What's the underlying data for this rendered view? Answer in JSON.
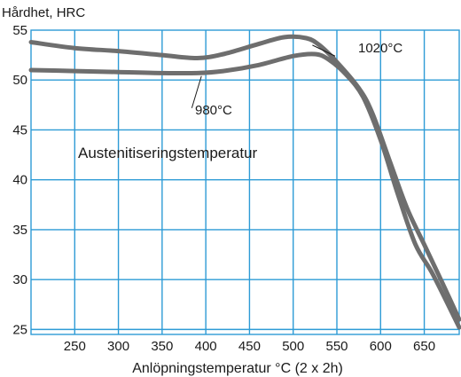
{
  "chart_data": {
    "type": "line",
    "ylabel": "Hårdhet, HRC",
    "xlabel": "Anlöpningstemperatur °C (2 x 2h)",
    "annotation": "Austenitiseringstemperatur",
    "grid": true,
    "xlim": [
      200,
      690
    ],
    "ylim": [
      24.5,
      55
    ],
    "xticks": [
      250,
      300,
      350,
      400,
      450,
      500,
      550,
      600,
      650
    ],
    "yticks": [
      25,
      30,
      35,
      40,
      45,
      50,
      55
    ],
    "series": [
      {
        "name": "1020°C",
        "x": [
          200,
          250,
          300,
          350,
          390,
          420,
          460,
          490,
          515,
          530,
          550,
          575,
          590,
          610,
          630,
          650,
          670,
          690
        ],
        "y": [
          53.8,
          53.2,
          52.9,
          52.5,
          52.2,
          52.6,
          53.6,
          54.3,
          54.2,
          53.5,
          51.8,
          49.2,
          46.8,
          42.0,
          37.2,
          33.5,
          29.8,
          26.0
        ]
      },
      {
        "name": "980°C",
        "x": [
          200,
          250,
          300,
          350,
          390,
          420,
          460,
          500,
          525,
          540,
          560,
          580,
          600,
          620,
          640,
          660,
          690
        ],
        "y": [
          51.0,
          50.9,
          50.8,
          50.7,
          50.7,
          50.9,
          51.5,
          52.4,
          52.6,
          52.1,
          50.6,
          48.3,
          44.0,
          38.5,
          33.5,
          30.5,
          25.2
        ]
      }
    ],
    "series_labels": [
      {
        "text": "1020°C",
        "series": 0
      },
      {
        "text": "980°C",
        "series": 1
      }
    ],
    "colors": {
      "grid": "#2d9bd6",
      "line": "#6e6e6e",
      "text": "#1a1a1a"
    }
  }
}
